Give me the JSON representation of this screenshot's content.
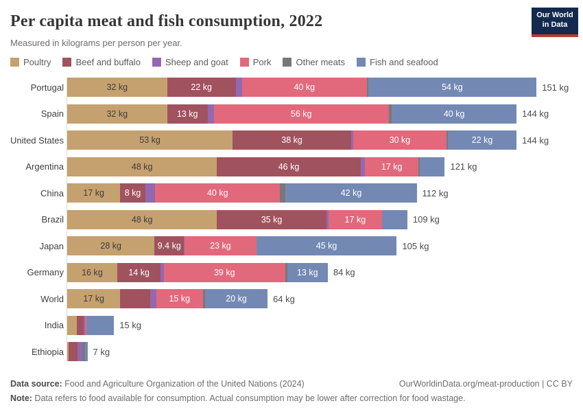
{
  "header": {
    "title": "Per capita meat and fish consumption, 2022",
    "subtitle": "Measured in kilograms per person per year."
  },
  "logo": {
    "line1": "Our World",
    "line2": "in Data",
    "bg_color": "#13294e",
    "accent_color": "#bf3a2e"
  },
  "chart_data": {
    "type": "bar",
    "stacked": true,
    "orientation": "horizontal",
    "unit": "kg",
    "xlim": [
      0,
      151
    ],
    "grid": false,
    "legend_position": "top",
    "series": [
      {
        "name": "Poultry",
        "color": "#c5a16f",
        "label_text_color": "#3d3d3d"
      },
      {
        "name": "Beef and buffalo",
        "color": "#a1525f",
        "label_text_color": "#ffffff"
      },
      {
        "name": "Sheep and goat",
        "color": "#9468b1",
        "label_text_color": "#ffffff"
      },
      {
        "name": "Pork",
        "color": "#e2687b",
        "label_text_color": "#ffffff"
      },
      {
        "name": "Other meats",
        "color": "#77787a",
        "label_text_color": "#ffffff"
      },
      {
        "name": "Fish and seafood",
        "color": "#7389b4",
        "label_text_color": "#ffffff"
      }
    ],
    "rows": [
      {
        "country": "Portugal",
        "values": [
          32,
          22,
          2,
          40,
          0.4,
          54
        ],
        "labels": [
          "32 kg",
          "22 kg",
          "",
          "40 kg",
          "",
          "54 kg"
        ],
        "total": 151,
        "total_label": "151 kg"
      },
      {
        "country": "Spain",
        "values": [
          32,
          13,
          2,
          56,
          1,
          40
        ],
        "labels": [
          "32 kg",
          "13 kg",
          "",
          "56 kg",
          "",
          "40 kg"
        ],
        "total": 144,
        "total_label": "144 kg"
      },
      {
        "country": "United States",
        "values": [
          53,
          38,
          0.6,
          30,
          0.4,
          22
        ],
        "labels": [
          "53 kg",
          "38 kg",
          "",
          "30 kg",
          "",
          "22 kg"
        ],
        "total": 144,
        "total_label": "144 kg"
      },
      {
        "country": "Argentina",
        "values": [
          48,
          46,
          1.5,
          17,
          0.5,
          8
        ],
        "labels": [
          "48 kg",
          "46 kg",
          "",
          "17 kg",
          "",
          ""
        ],
        "total": 121,
        "total_label": "121 kg"
      },
      {
        "country": "China",
        "values": [
          17,
          8,
          3.2,
          40,
          1.8,
          42
        ],
        "labels": [
          "17 kg",
          "8 kg",
          "",
          "40 kg",
          "",
          "42 kg"
        ],
        "total": 112,
        "total_label": "112 kg"
      },
      {
        "country": "Brazil",
        "values": [
          48,
          35,
          0.8,
          17,
          0.2,
          8
        ],
        "labels": [
          "48 kg",
          "35 kg",
          "",
          "17 kg",
          "",
          ""
        ],
        "total": 109,
        "total_label": "109 kg"
      },
      {
        "country": "Japan",
        "values": [
          28,
          9.4,
          0.2,
          23,
          0,
          45
        ],
        "labels": [
          "28 kg",
          "9.4 kg",
          "",
          "23 kg",
          "",
          "45 kg"
        ],
        "total": 105,
        "total_label": "105 kg"
      },
      {
        "country": "Germany",
        "values": [
          16,
          14,
          0.9,
          39,
          0.6,
          13
        ],
        "labels": [
          "16 kg",
          "14 kg",
          "",
          "39 kg",
          "",
          "13 kg"
        ],
        "total": 84,
        "total_label": "84 kg"
      },
      {
        "country": "World",
        "values": [
          17,
          9.5,
          2,
          15,
          0.7,
          20
        ],
        "labels": [
          "17 kg",
          "",
          "",
          "15 kg",
          "",
          "20 kg"
        ],
        "total": 64,
        "total_label": "64 kg"
      },
      {
        "country": "India",
        "values": [
          3,
          2.2,
          0.5,
          0.4,
          0.1,
          8.8
        ],
        "labels": [
          "",
          "",
          "",
          "",
          "",
          ""
        ],
        "total": 15,
        "total_label": "15 kg"
      },
      {
        "country": "Ethiopia",
        "values": [
          0.4,
          2.9,
          1.5,
          0,
          1.0,
          0.7
        ],
        "labels": [
          "",
          "",
          "",
          "",
          "",
          ""
        ],
        "total": 7,
        "total_label": "7 kg"
      }
    ]
  },
  "footer": {
    "source_prefix": "Data source:",
    "source_text": " Food and Agriculture Organization of the United Nations (2024)",
    "link_text": "OurWorldinData.org/meat-production | CC BY",
    "note_prefix": "Note:",
    "note_text": " Data refers to food available for consumption. Actual consumption may be lower after correction for food wastage."
  }
}
